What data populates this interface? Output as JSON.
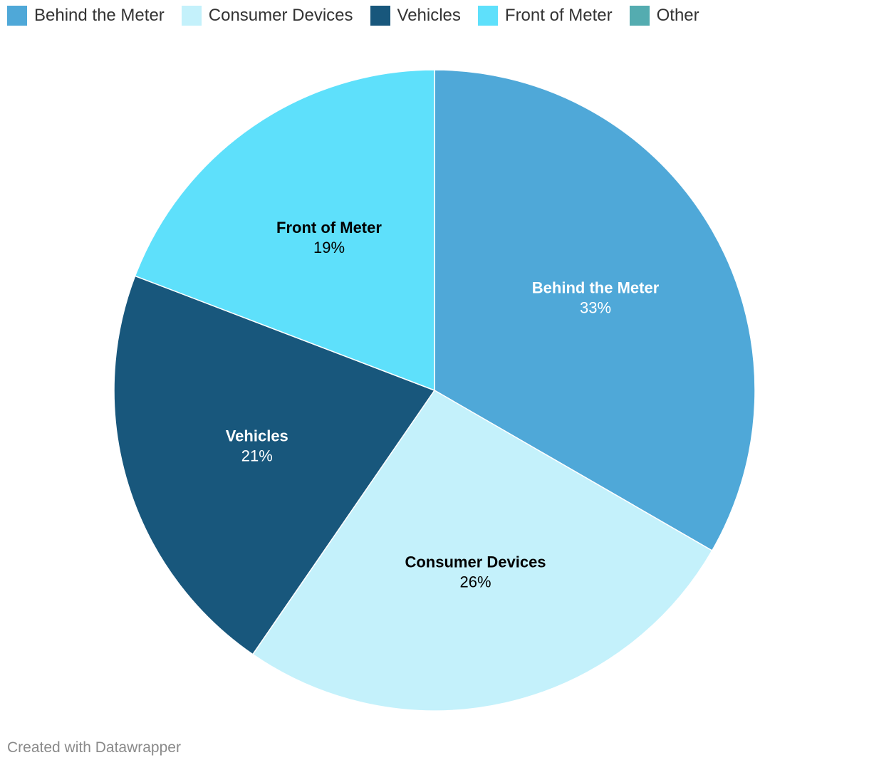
{
  "chart_data": {
    "type": "pie",
    "title": "",
    "categories": [
      "Behind the Meter",
      "Consumer Devices",
      "Vehicles",
      "Front of Meter",
      "Other"
    ],
    "values": [
      33,
      26,
      21,
      19,
      0
    ],
    "value_labels": [
      "33%",
      "26%",
      "21%",
      "19%",
      ""
    ],
    "colors": [
      "#4fa8d8",
      "#c4f1fb",
      "#18577c",
      "#5ee0fb",
      "#54acb0"
    ],
    "label_colors": [
      "#ffffff",
      "#000000",
      "#ffffff",
      "#000000",
      "#000000"
    ],
    "start_angle_deg": 0,
    "direction": "clockwise",
    "legend_position": "top-left"
  },
  "footer": {
    "credit": "Created with Datawrapper"
  }
}
